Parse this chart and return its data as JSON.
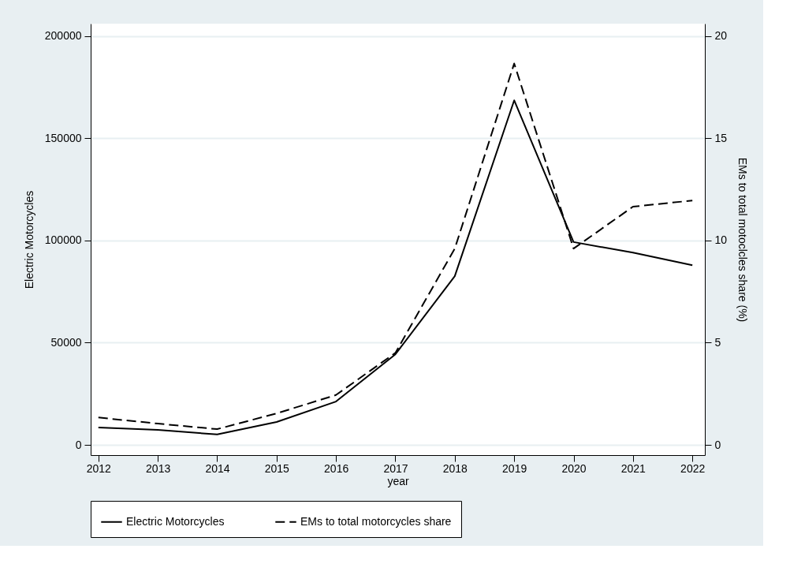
{
  "chart_data": {
    "type": "line",
    "xlabel": "year",
    "ylabel": "Electric Motorcycles",
    "y2label": "EMs to total motoclcles share (%)",
    "x": [
      2012,
      2013,
      2014,
      2015,
      2016,
      2017,
      2018,
      2019,
      2020,
      2021,
      2022
    ],
    "series": [
      {
        "name": "Electric Motorcycles",
        "color": "#000000",
        "line_style": "solid",
        "values": [
          8500,
          7300,
          5100,
          11200,
          21200,
          44300,
          82500,
          168500,
          99200,
          94000,
          87900
        ]
      },
      {
        "name": "EMs to total motorcycles share",
        "color": "#000000",
        "line_style": "dashed",
        "axis": "y2",
        "values": [
          1.34,
          1.04,
          0.77,
          1.54,
          2.44,
          4.5,
          9.6,
          18.65,
          9.6,
          11.65,
          11.95
        ]
      }
    ],
    "xlim": [
      2011.87,
      2022.21
    ],
    "xticks": [
      2012,
      2013,
      2014,
      2015,
      2016,
      2017,
      2018,
      2019,
      2020,
      2021,
      2022
    ],
    "ylim": [
      -5000,
      206000
    ],
    "yticks": [
      0,
      50000,
      100000,
      150000,
      200000
    ],
    "y2lim": [
      -0.5,
      20.6
    ],
    "y2ticks": [
      0,
      5,
      10,
      15,
      20
    ],
    "grid": "y",
    "legend": "bottom",
    "marker": "none"
  }
}
